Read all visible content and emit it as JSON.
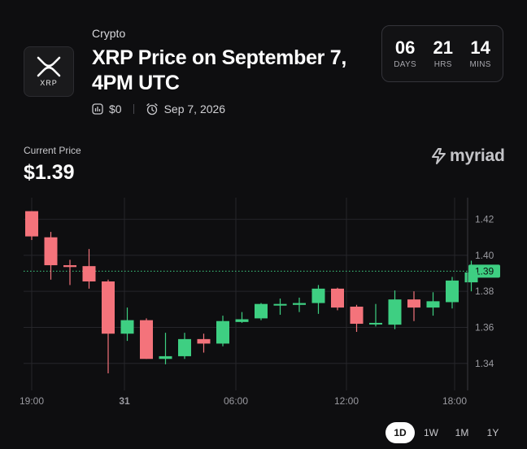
{
  "market": {
    "category": "Crypto",
    "title": "XRP Price on September 7, 4PM UTC",
    "volume": "$0",
    "end_date": "Sep 7, 2026",
    "logo_text": "XRP"
  },
  "countdown": [
    {
      "value": "06",
      "label": "DAYS"
    },
    {
      "value": "21",
      "label": "HRS"
    },
    {
      "value": "14",
      "label": "MINS"
    }
  ],
  "price": {
    "label": "Current Price",
    "value": "$1.39"
  },
  "brand": {
    "name": "myriad"
  },
  "colors": {
    "up": "#3ecf82",
    "down": "#f4737b",
    "background": "#0e0e10",
    "grid": "#26262a"
  },
  "chart_data": {
    "type": "candlestick",
    "x_ticks": [
      "19:00",
      "31",
      "06:00",
      "12:00",
      "18:00"
    ],
    "y_ticks": [
      "1.42",
      "1.40",
      "1.38",
      "1.36",
      "1.34"
    ],
    "ylim": [
      1.325,
      1.432
    ],
    "current_price_tag": "1.39",
    "current_price": 1.3912,
    "candles": [
      {
        "o": 1.4245,
        "c": 1.4105,
        "h": 1.4245,
        "l": 1.4085
      },
      {
        "o": 1.41,
        "c": 1.3945,
        "h": 1.413,
        "l": 1.3865
      },
      {
        "o": 1.3945,
        "c": 1.3935,
        "h": 1.3975,
        "l": 1.3835
      },
      {
        "o": 1.394,
        "c": 1.3855,
        "h": 1.4035,
        "l": 1.3815
      },
      {
        "o": 1.3855,
        "c": 1.3565,
        "h": 1.3865,
        "l": 1.3345
      },
      {
        "o": 1.3565,
        "c": 1.364,
        "h": 1.371,
        "l": 1.3525
      },
      {
        "o": 1.364,
        "c": 1.3425,
        "h": 1.365,
        "l": 1.3425
      },
      {
        "o": 1.3425,
        "c": 1.344,
        "h": 1.357,
        "l": 1.3395
      },
      {
        "o": 1.344,
        "c": 1.3535,
        "h": 1.357,
        "l": 1.3425
      },
      {
        "o": 1.3535,
        "c": 1.351,
        "h": 1.3565,
        "l": 1.346
      },
      {
        "o": 1.351,
        "c": 1.3635,
        "h": 1.3665,
        "l": 1.3495
      },
      {
        "o": 1.363,
        "c": 1.3645,
        "h": 1.3685,
        "l": 1.3625
      },
      {
        "o": 1.365,
        "c": 1.373,
        "h": 1.3735,
        "l": 1.364
      },
      {
        "o": 1.373,
        "c": 1.373,
        "h": 1.376,
        "l": 1.367
      },
      {
        "o": 1.3725,
        "c": 1.3735,
        "h": 1.3765,
        "l": 1.3685
      },
      {
        "o": 1.3735,
        "c": 1.3815,
        "h": 1.3835,
        "l": 1.3675
      },
      {
        "o": 1.3815,
        "c": 1.371,
        "h": 1.382,
        "l": 1.3695
      },
      {
        "o": 1.3715,
        "c": 1.362,
        "h": 1.3725,
        "l": 1.3575
      },
      {
        "o": 1.362,
        "c": 1.3625,
        "h": 1.373,
        "l": 1.3605
      },
      {
        "o": 1.3615,
        "c": 1.3755,
        "h": 1.3805,
        "l": 1.359
      },
      {
        "o": 1.3755,
        "c": 1.371,
        "h": 1.38,
        "l": 1.3635
      },
      {
        "o": 1.371,
        "c": 1.3745,
        "h": 1.3795,
        "l": 1.3665
      },
      {
        "o": 1.374,
        "c": 1.386,
        "h": 1.388,
        "l": 1.3705
      },
      {
        "o": 1.385,
        "c": 1.3905,
        "h": 1.397,
        "l": 1.38
      }
    ]
  },
  "range_tabs": [
    {
      "label": "1D",
      "active": true
    },
    {
      "label": "1W",
      "active": false
    },
    {
      "label": "1M",
      "active": false
    },
    {
      "label": "1Y",
      "active": false
    }
  ]
}
